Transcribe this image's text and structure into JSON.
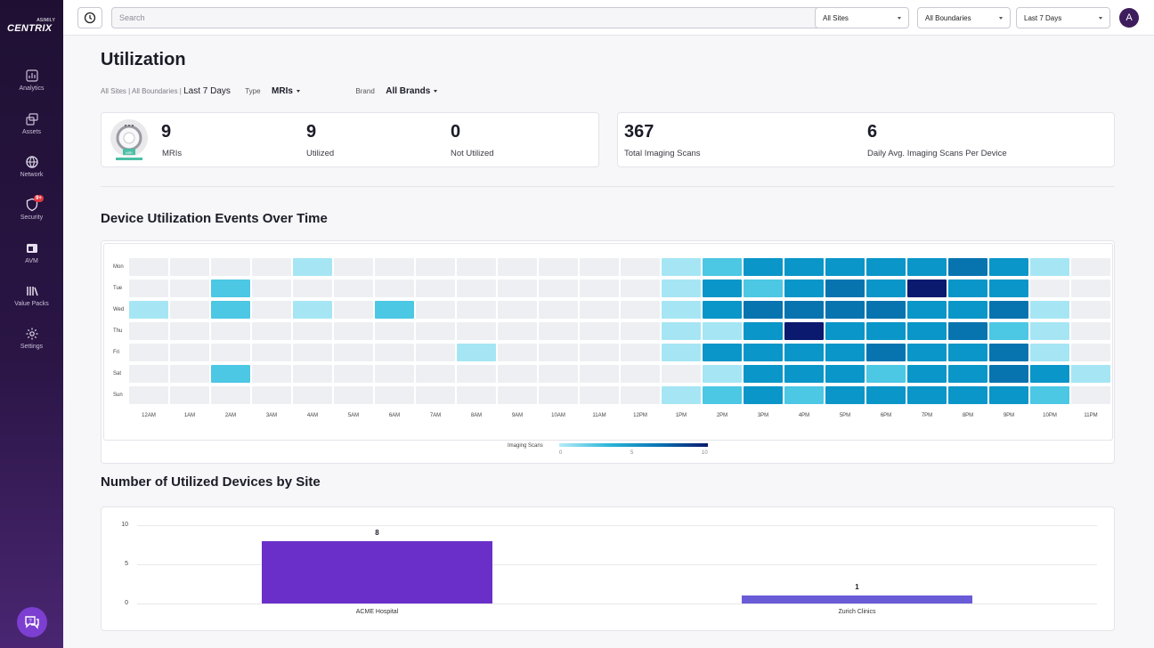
{
  "app": {
    "logo_text": "CENTRIX",
    "logo_small": "ASIMILY"
  },
  "sidebar": {
    "items": [
      {
        "label": "Analytics",
        "icon": "analytics-icon"
      },
      {
        "label": "Assets",
        "icon": "assets-icon"
      },
      {
        "label": "Network",
        "icon": "globe-icon"
      },
      {
        "label": "Security",
        "icon": "shield-icon",
        "badge": "9+"
      },
      {
        "label": "AVM",
        "icon": "avm-icon"
      },
      {
        "label": "Value Packs",
        "icon": "books-icon"
      },
      {
        "label": "Settings",
        "icon": "gear-icon"
      }
    ]
  },
  "topbar": {
    "search_placeholder": "Search",
    "site_filter": "All Sites",
    "boundary_filter": "All Boundaries",
    "date_filter": "Last 7 Days",
    "avatar_initial": "A"
  },
  "page": {
    "title": "Utilization",
    "crumb": "All Sites | All Boundaries |",
    "crumb_current": "Last 7 Days",
    "type_label": "Type",
    "type_value": "MRIs",
    "brand_label": "Brand",
    "brand_value": "All Brands"
  },
  "stats_left": {
    "device_image_label": "MRI",
    "mris_value": "9",
    "mris_label": "MRIs",
    "utilized_value": "9",
    "utilized_label": "Utilized",
    "not_utilized_value": "0",
    "not_utilized_label": "Not Utilized"
  },
  "stats_right": {
    "total_value": "367",
    "total_label": "Total Imaging Scans",
    "avg_value": "6",
    "avg_label": "Daily Avg. Imaging Scans Per Device"
  },
  "heatmap": {
    "title": "Device Utilization Events Over Time",
    "days": [
      "Mon",
      "Tue",
      "Wed",
      "Thu",
      "Fri",
      "Sat",
      "Sun"
    ],
    "hours": [
      "12AM",
      "1AM",
      "2AM",
      "3AM",
      "4AM",
      "5AM",
      "6AM",
      "7AM",
      "8AM",
      "9AM",
      "10AM",
      "11AM",
      "12PM",
      "1PM",
      "2PM",
      "3PM",
      "4PM",
      "5PM",
      "6PM",
      "7PM",
      "8PM",
      "9PM",
      "10PM",
      "11PM"
    ],
    "values": [
      [
        0,
        0,
        0,
        0,
        2,
        0,
        0,
        0,
        0,
        0,
        0,
        0,
        0,
        2,
        3,
        6,
        6,
        6,
        6,
        6,
        7,
        6,
        2,
        0
      ],
      [
        0,
        0,
        3,
        0,
        0,
        0,
        0,
        0,
        0,
        0,
        0,
        0,
        0,
        2,
        6,
        3,
        6,
        7,
        6,
        10,
        6,
        6,
        0,
        0
      ],
      [
        2,
        0,
        3,
        0,
        2,
        0,
        3,
        0,
        0,
        0,
        0,
        0,
        0,
        2,
        6,
        7,
        7,
        7,
        7,
        6,
        6,
        7,
        2,
        0
      ],
      [
        0,
        0,
        0,
        0,
        0,
        0,
        0,
        0,
        0,
        0,
        0,
        0,
        0,
        2,
        2,
        6,
        10,
        6,
        6,
        6,
        7,
        3,
        2,
        0
      ],
      [
        0,
        0,
        0,
        0,
        0,
        0,
        0,
        0,
        2,
        0,
        0,
        0,
        0,
        2,
        6,
        6,
        6,
        6,
        7,
        6,
        6,
        7,
        2,
        0
      ],
      [
        0,
        0,
        3,
        0,
        0,
        0,
        0,
        0,
        0,
        0,
        0,
        0,
        0,
        0,
        2,
        6,
        6,
        6,
        3,
        6,
        6,
        7,
        6,
        2
      ],
      [
        0,
        0,
        0,
        0,
        0,
        0,
        0,
        0,
        0,
        0,
        0,
        0,
        0,
        2,
        3,
        6,
        3,
        6,
        6,
        6,
        6,
        6,
        3,
        0
      ]
    ],
    "legend_title": "Imaging Scans",
    "legend_ticks": [
      "0",
      "5",
      "10"
    ],
    "colors": {
      "empty": "#eeeff2",
      "low": "#a6e6f4",
      "mid": "#4cc7e4",
      "high": "#0a96c8",
      "higher": "#0774b0",
      "max": "#0b1a6e"
    }
  },
  "chart_data": {
    "type": "bar",
    "title": "Number of Utilized Devices by Site",
    "categories": [
      "ACME Hospital",
      "Zurich Clinics"
    ],
    "values": [
      8,
      1
    ],
    "colors": [
      "#6a2fc9",
      "#6a5bd6"
    ],
    "ylim": [
      0,
      10
    ],
    "yticks": [
      "10",
      "5",
      "0"
    ]
  }
}
